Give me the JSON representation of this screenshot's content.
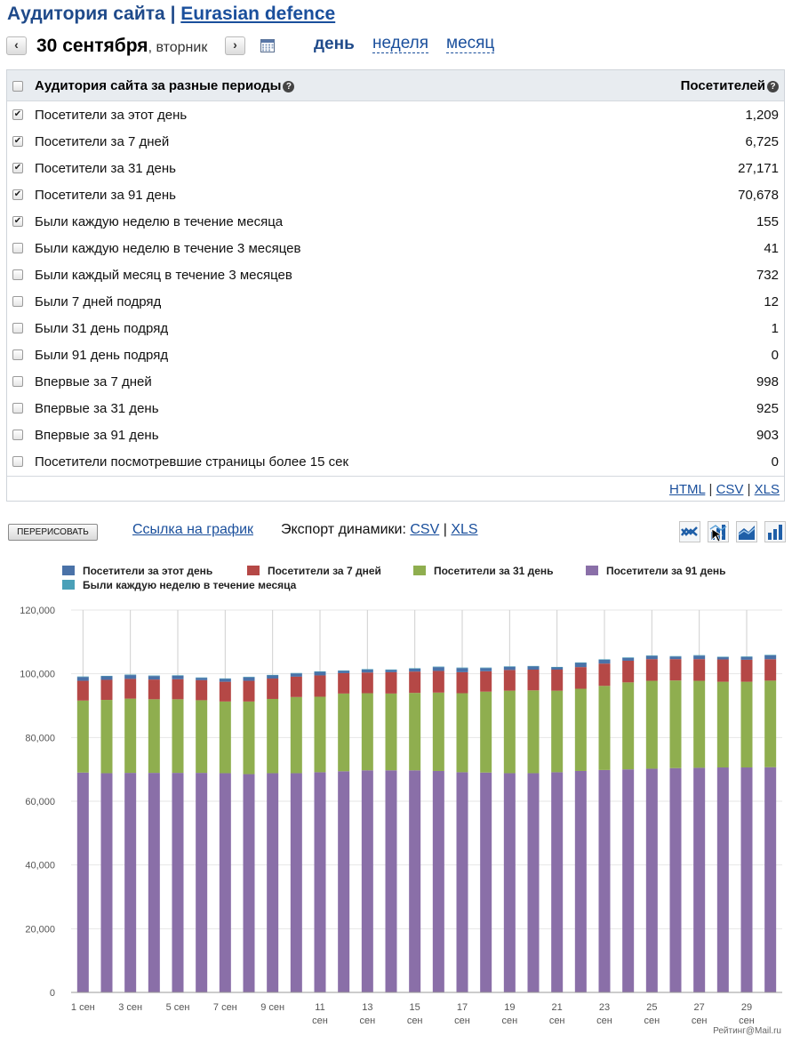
{
  "header": {
    "title": "Аудитория сайта",
    "separator": "|",
    "site_link": "Eurasian defence"
  },
  "nav": {
    "prev": "‹",
    "next": "›",
    "date": "30 сентября",
    "weekday": ", вторник",
    "periods": [
      "день",
      "неделя",
      "месяц"
    ],
    "active_period": "день"
  },
  "table": {
    "header_label": "Аудитория сайта за разные периоды",
    "header_value": "Посетителей",
    "rows": [
      {
        "label": "Посетители за этот день",
        "value": "1,209",
        "checked": true
      },
      {
        "label": "Посетители за 7 дней",
        "value": "6,725",
        "checked": true
      },
      {
        "label": "Посетители за 31 день",
        "value": "27,171",
        "checked": true
      },
      {
        "label": "Посетители за 91 день",
        "value": "70,678",
        "checked": true
      },
      {
        "label": "Были каждую неделю в течение месяца",
        "value": "155",
        "checked": true
      },
      {
        "label": "Были каждую неделю в течение 3 месяцев",
        "value": "41",
        "checked": false
      },
      {
        "label": "Были каждый месяц в течение 3 месяцев",
        "value": "732",
        "checked": false
      },
      {
        "label": "Были 7 дней подряд",
        "value": "12",
        "checked": false
      },
      {
        "label": "Были 31 день подряд",
        "value": "1",
        "checked": false
      },
      {
        "label": "Были 91 день подряд",
        "value": "0",
        "checked": false
      },
      {
        "label": "Впервые за 7 дней",
        "value": "998",
        "checked": false
      },
      {
        "label": "Впервые за 31 день",
        "value": "925",
        "checked": false
      },
      {
        "label": "Впервые за 91 день",
        "value": "903",
        "checked": false
      },
      {
        "label": "Посетители посмотревшие страницы более 15 сек",
        "value": "0",
        "checked": false
      }
    ],
    "exports": [
      "HTML",
      "CSV",
      "XLS"
    ]
  },
  "toolbar": {
    "redraw_label": "ПЕРЕРИСОВАТЬ",
    "chart_link": "Ссылка на график",
    "export_label": "Экспорт динамики:",
    "export_csv": "CSV",
    "export_sep": "|",
    "export_xls": "XLS",
    "chart_type_icons": [
      "line-chart-icon",
      "bar-line-chart-icon",
      "area-chart-icon",
      "bar-chart-icon"
    ]
  },
  "chart_data": {
    "type": "bar",
    "stacked": true,
    "x_labels": [
      "1 сен",
      "",
      "3 сен",
      "",
      "5 сен",
      "",
      "7 сен",
      "",
      "9 сен",
      "",
      "11 сен",
      "",
      "13 сен",
      "",
      "15 сен",
      "",
      "17 сен",
      "",
      "19 сен",
      "",
      "21 сен",
      "",
      "23 сен",
      "",
      "25 сен",
      "",
      "27 сен",
      "",
      "29 сен",
      ""
    ],
    "ylim": [
      0,
      120000
    ],
    "yticks": [
      "0",
      "20,000",
      "40,000",
      "60,000",
      "80,000",
      "100,000",
      "120,000"
    ],
    "grid": true,
    "legend_position": "top-left",
    "series": [
      {
        "name": "Посетители за 91 день",
        "color": "#8a6fa8",
        "values": [
          69000,
          68800,
          68900,
          68900,
          68900,
          68900,
          68800,
          68500,
          68800,
          68800,
          69100,
          69400,
          69700,
          69700,
          69700,
          69500,
          69100,
          69000,
          68800,
          68800,
          69100,
          69500,
          69800,
          70000,
          70200,
          70400,
          70500,
          70600,
          70600,
          70678
        ]
      },
      {
        "name": "Посетители за 31 день",
        "color": "#8fae4f",
        "values": [
          22600,
          23000,
          23300,
          23100,
          23100,
          22800,
          22500,
          22800,
          23300,
          23900,
          23700,
          24400,
          24200,
          24100,
          24300,
          24600,
          24800,
          25400,
          25900,
          26000,
          25600,
          25800,
          26400,
          27300,
          27600,
          27500,
          27300,
          26900,
          26900,
          27171
        ]
      },
      {
        "name": "Посетители за 7 дней",
        "color": "#b54846",
        "values": [
          6200,
          6300,
          6200,
          6200,
          6300,
          6300,
          6200,
          6500,
          6400,
          6400,
          6700,
          6400,
          6500,
          6700,
          6700,
          6800,
          6600,
          6400,
          6500,
          6500,
          6600,
          6800,
          7000,
          6800,
          6800,
          6700,
          6800,
          7000,
          6900,
          6725
        ]
      },
      {
        "name": "Посетители за этот день",
        "color": "#4a72a8",
        "values": [
          1200,
          1100,
          1200,
          1100,
          1100,
          700,
          900,
          1100,
          1000,
          1000,
          1100,
          700,
          900,
          700,
          900,
          1200,
          1300,
          1000,
          1000,
          1000,
          700,
          1300,
          1200,
          900,
          1000,
          800,
          1100,
          700,
          900,
          1209
        ]
      },
      {
        "name": "Были каждую неделю в течение месяца",
        "color": "#4aa0b8",
        "values": [
          150,
          150,
          150,
          150,
          150,
          150,
          150,
          150,
          150,
          150,
          150,
          150,
          150,
          150,
          150,
          150,
          150,
          150,
          150,
          150,
          150,
          150,
          150,
          150,
          150,
          150,
          150,
          150,
          150,
          155
        ]
      }
    ]
  },
  "footer": {
    "credit": "Рейтинг@Mail.ru"
  }
}
